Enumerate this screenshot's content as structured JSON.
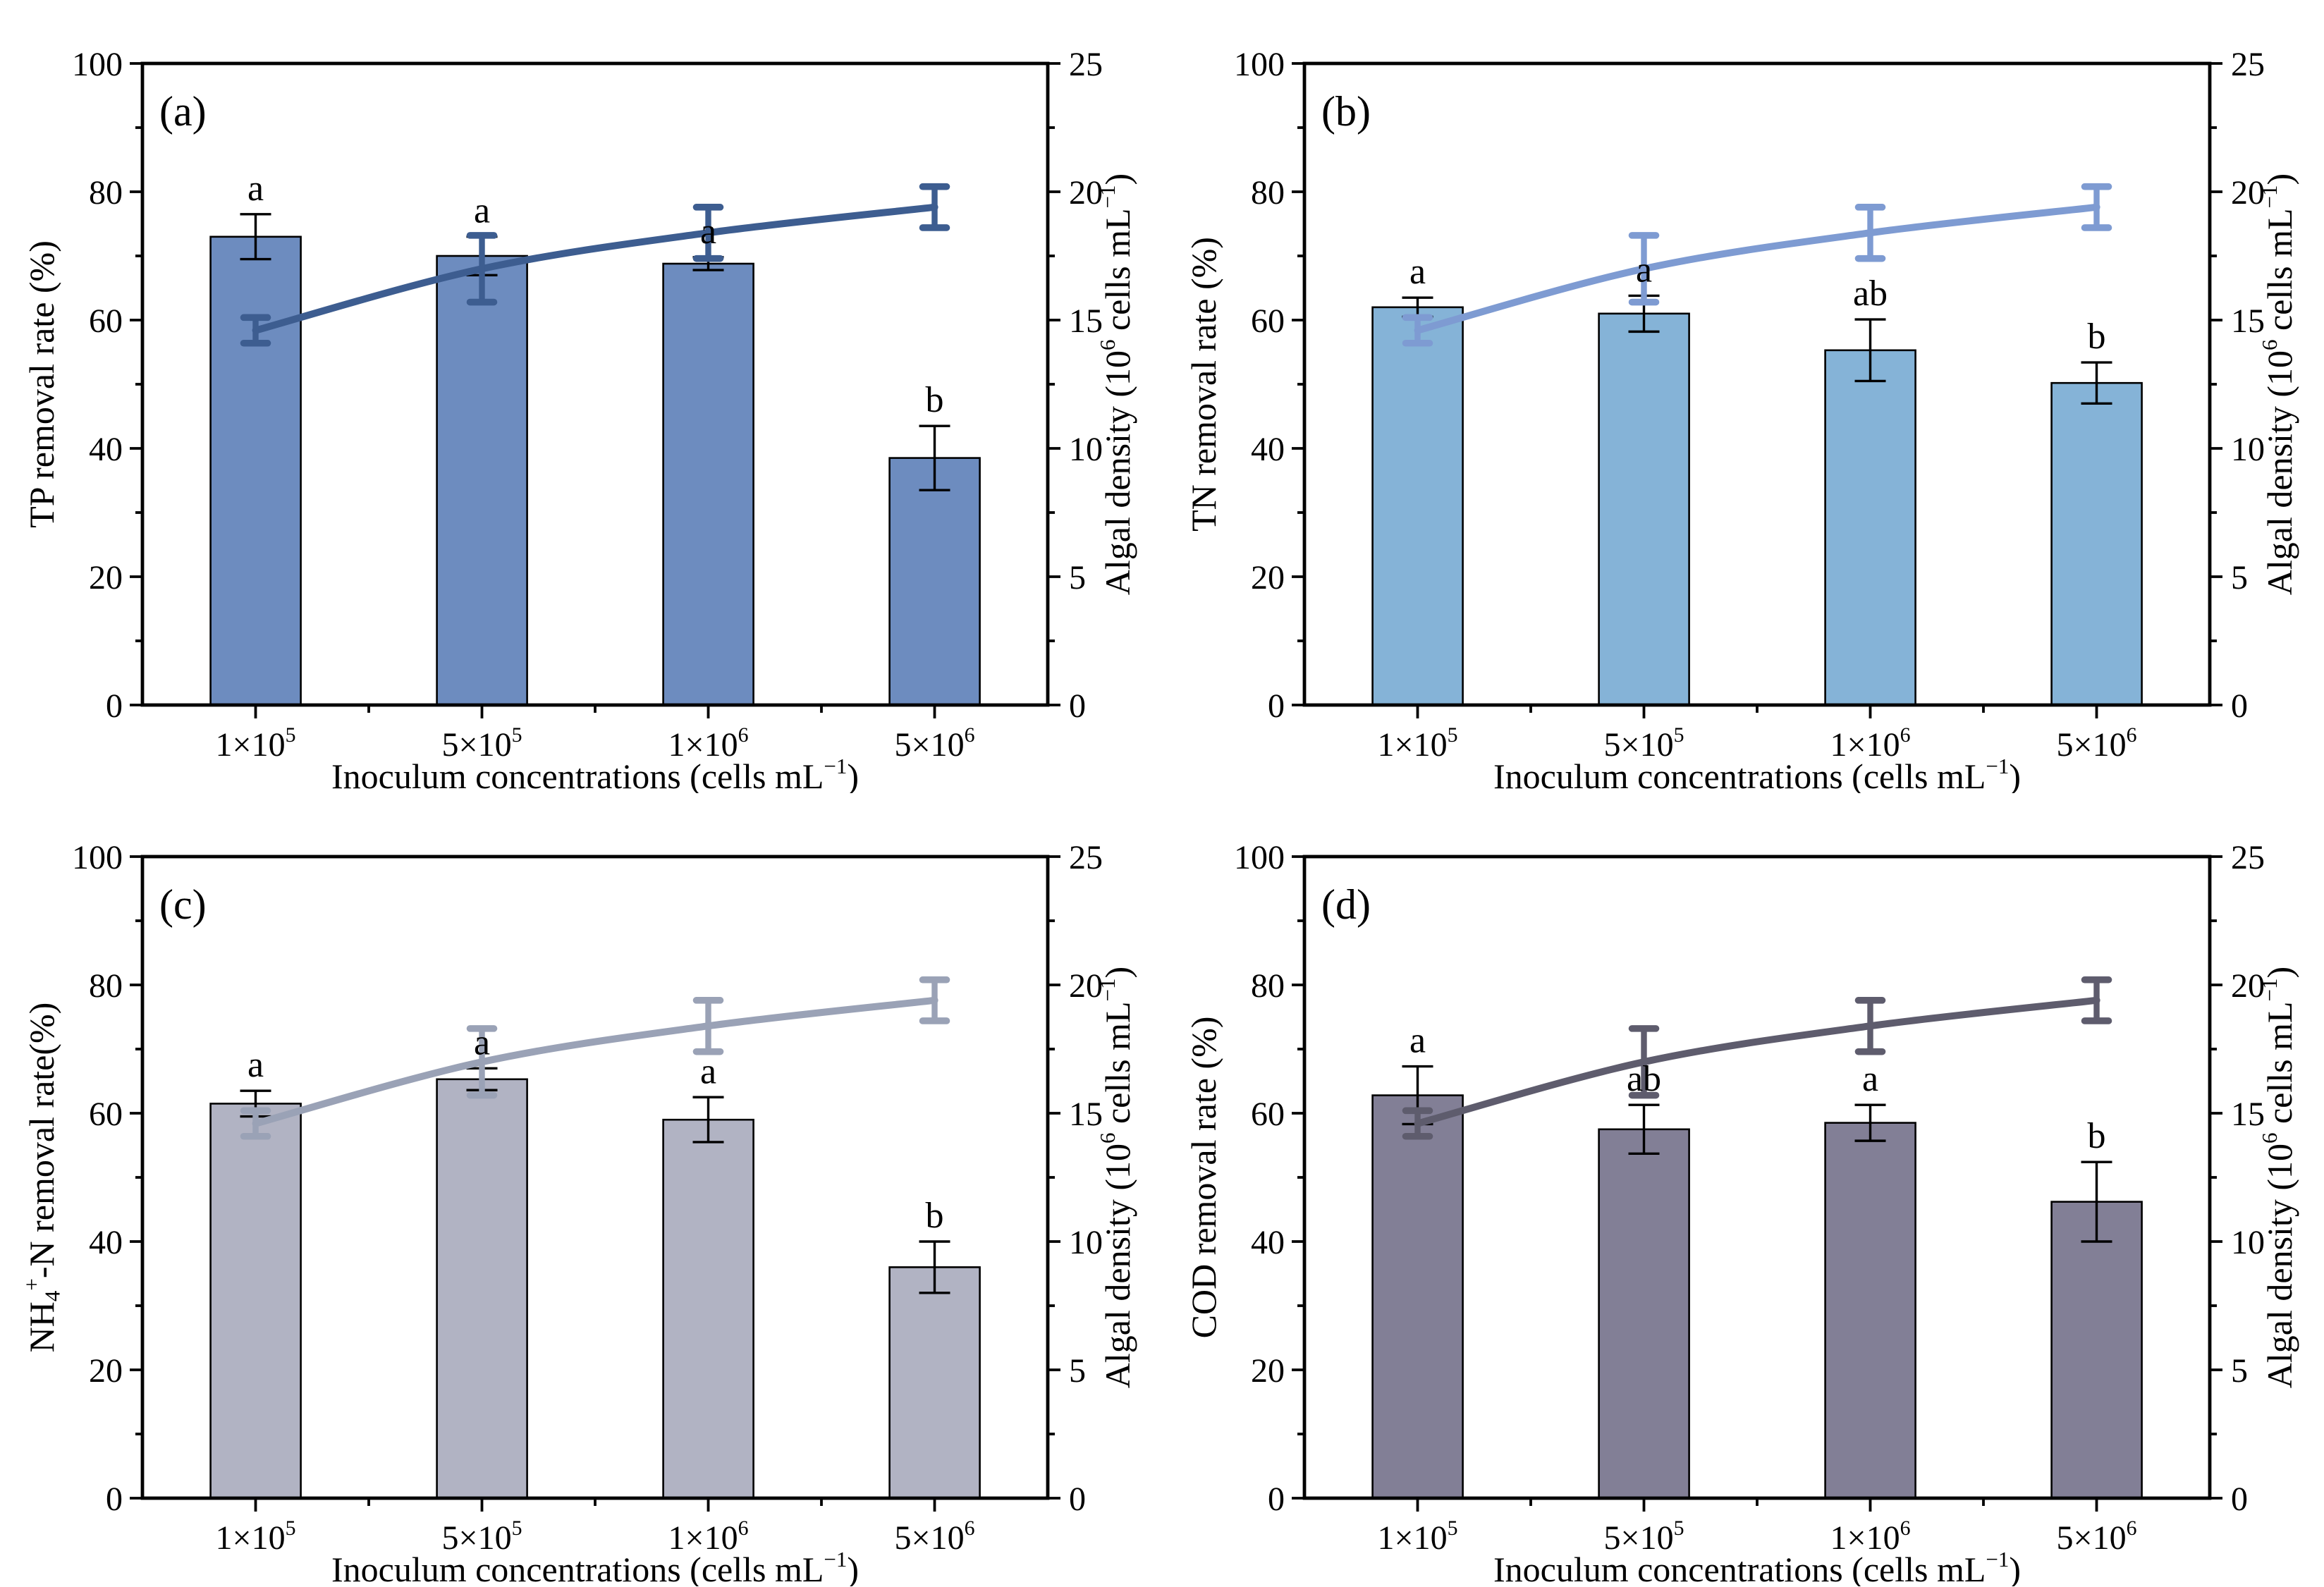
{
  "page": {
    "background": "#ffffff"
  },
  "axes": {
    "x_title": "Inoculum concentrations (cells mL^{−1})",
    "x_categories": [
      "1×10^{5}",
      "5×10^{5}",
      "1×10^{6}",
      "5×10^{6}"
    ],
    "left_range": [
      0,
      100
    ],
    "left_major_ticks": [
      0,
      20,
      40,
      60,
      80,
      100
    ],
    "left_minor_ticks": [
      10,
      30,
      50,
      70,
      90
    ],
    "right_title": "Algal density (10^{6} cells mL^{−1})",
    "right_range": [
      0,
      25
    ],
    "right_major_ticks": [
      0,
      5,
      10,
      15,
      20,
      25
    ],
    "right_minor_ticks": [
      2.5,
      7.5,
      12.5,
      17.5,
      22.5
    ],
    "grid": "off",
    "legend": "none",
    "frame_color": "#000000",
    "error_bar_color": "#000000"
  },
  "chart_data": [
    {
      "panel_label": "(a)",
      "type": "bar+line",
      "left_ylabel": "TP removal rate (%)",
      "bar_series": {
        "name": "TP removal rate",
        "axis": "left",
        "values": [
          73,
          70,
          68.8,
          38.5
        ],
        "errors": [
          3.5,
          3.0,
          1.0,
          5.0
        ],
        "sig_letters": [
          "a",
          "a",
          "a",
          "b"
        ],
        "color": "#6d8cbf"
      },
      "line_series": {
        "name": "Algal density",
        "axis": "right",
        "values": [
          14.6,
          17.0,
          18.4,
          19.4
        ],
        "errors": [
          0.5,
          1.3,
          1.0,
          0.8
        ],
        "color": "#3d5d90"
      }
    },
    {
      "panel_label": "(b)",
      "type": "bar+line",
      "left_ylabel": "TN removal rate (%)",
      "bar_series": {
        "name": "TN removal rate",
        "axis": "left",
        "values": [
          62,
          61,
          55.3,
          50.2
        ],
        "errors": [
          1.5,
          2.8,
          4.8,
          3.2
        ],
        "sig_letters": [
          "a",
          "a",
          "ab",
          "b"
        ],
        "color": "#85b3d7"
      },
      "line_series": {
        "name": "Algal density",
        "axis": "right",
        "values": [
          14.6,
          17.0,
          18.4,
          19.4
        ],
        "errors": [
          0.5,
          1.3,
          1.0,
          0.8
        ],
        "color": "#7e9bd2"
      }
    },
    {
      "panel_label": "(c)",
      "type": "bar+line",
      "left_ylabel": "NH_{4}^{+}-N removal rate(%)",
      "bar_series": {
        "name": "NH4+-N removal rate",
        "axis": "left",
        "values": [
          61.5,
          65.3,
          59,
          36
        ],
        "errors": [
          2.0,
          1.7,
          3.5,
          4.0
        ],
        "sig_letters": [
          "a",
          "a",
          "a",
          "b"
        ],
        "color": "#b1b3c3"
      },
      "line_series": {
        "name": "Algal density",
        "axis": "right",
        "values": [
          14.6,
          17.0,
          18.4,
          19.4
        ],
        "errors": [
          0.5,
          1.3,
          1.0,
          0.8
        ],
        "color": "#9aa2b6"
      }
    },
    {
      "panel_label": "(d)",
      "type": "bar+line",
      "left_ylabel": "COD removal rate (%)",
      "bar_series": {
        "name": "COD removal rate",
        "axis": "left",
        "values": [
          62.8,
          57.5,
          58.5,
          46.2
        ],
        "errors": [
          4.5,
          3.8,
          2.8,
          6.2
        ],
        "sig_letters": [
          "a",
          "ab",
          "a",
          "b"
        ],
        "color": "#827f96"
      },
      "line_series": {
        "name": "Algal density",
        "axis": "right",
        "values": [
          14.6,
          17.0,
          18.4,
          19.4
        ],
        "errors": [
          0.5,
          1.3,
          1.0,
          0.8
        ],
        "color": "#5e5c6d"
      }
    }
  ]
}
